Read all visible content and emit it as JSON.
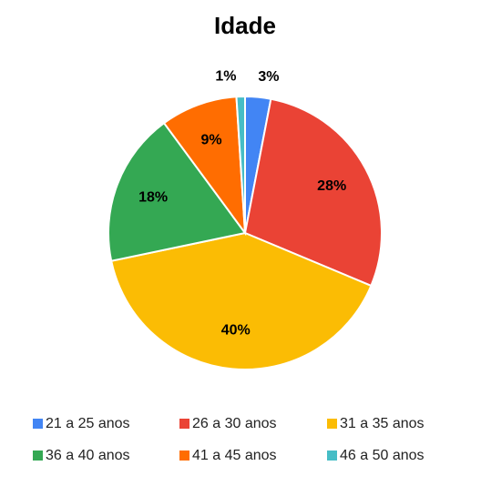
{
  "chart_data": {
    "type": "pie",
    "title": "Idade",
    "categories": [
      "21 a 25 anos",
      "26 a 30 anos",
      "31 a 35 anos",
      "36 a 40 anos",
      "41 a 45 anos",
      "46 a 50 anos"
    ],
    "values": [
      3,
      28,
      40,
      18,
      9,
      1
    ],
    "value_labels": [
      "3%",
      "28%",
      "40%",
      "18%",
      "9%",
      "1%"
    ],
    "colors": [
      "#4285f4",
      "#ea4335",
      "#fbbc04",
      "#34a853",
      "#ff6d01",
      "#46bdc6"
    ],
    "legend": "bottom"
  }
}
